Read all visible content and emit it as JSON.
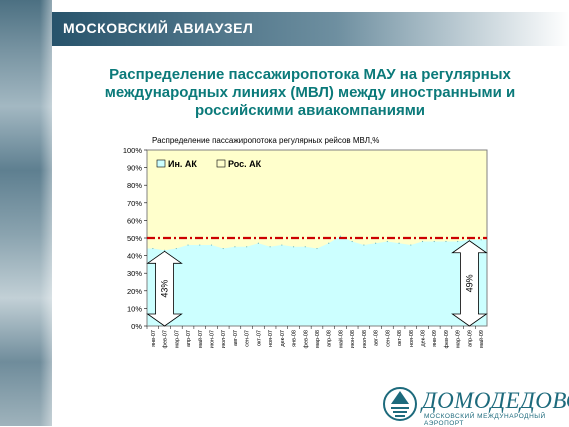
{
  "header": {
    "title": "МОСКОВСКИЙ АВИАУЗЕЛ"
  },
  "slide_title": [
    "Распределение пассажиропотока МАУ на регулярных",
    "международных линиях (МВЛ) между иностранными и",
    "российскими авиакомпаниями"
  ],
  "logo": {
    "name": "ДОМОДЕДОВО",
    "subtitle": "МОСКОВСКИЙ МЕЖДУНАРОДНЫЙ АЭРОПОРТ"
  },
  "chart_data": {
    "type": "area",
    "title": "Распределение пассажиропотока регулярных рейсов МВЛ,%",
    "xlabel": "",
    "ylabel": "",
    "ylim": [
      0,
      100
    ],
    "y_ticks": [
      "0%",
      "10%",
      "20%",
      "30%",
      "40%",
      "50%",
      "60%",
      "70%",
      "80%",
      "90%",
      "100%"
    ],
    "categories": [
      "янв-07",
      "фев-07",
      "мар-07",
      "апр-07",
      "май-07",
      "июн-07",
      "июл-07",
      "авг-07",
      "сен-07",
      "окт-07",
      "ноя-07",
      "дек-07",
      "янв-08",
      "фев-08",
      "мар-08",
      "апр-08",
      "май-08",
      "июн-08",
      "июл-08",
      "авг-08",
      "сен-08",
      "окт-08",
      "ноя-08",
      "дек-08",
      "янв-09",
      "фев-09",
      "мар-09",
      "апр-09",
      "май-09"
    ],
    "series": [
      {
        "name": "Ин. АК",
        "color": "#ccffff",
        "values": [
          44,
          43,
          44,
          46,
          46,
          46,
          44,
          45,
          45,
          47,
          45,
          46,
          45,
          45,
          44,
          47,
          51,
          48,
          46,
          47,
          48,
          47,
          46,
          48,
          48,
          48,
          48,
          49,
          49
        ]
      },
      {
        "name": "Рос. АК",
        "color": "#ffffcc",
        "values": [
          56,
          57,
          56,
          54,
          54,
          54,
          56,
          55,
          55,
          53,
          55,
          54,
          55,
          55,
          56,
          53,
          49,
          52,
          54,
          53,
          52,
          53,
          54,
          52,
          52,
          52,
          52,
          51,
          51
        ]
      }
    ],
    "stacked": true,
    "reference_line": {
      "value": 50,
      "color": "#cc0000",
      "style": "dash-dot"
    },
    "annotations": [
      {
        "text": "43%",
        "category": "фев-07"
      },
      {
        "text": "49%",
        "category": "апр-09"
      }
    ],
    "legend_position": "top-left",
    "grid": false
  }
}
